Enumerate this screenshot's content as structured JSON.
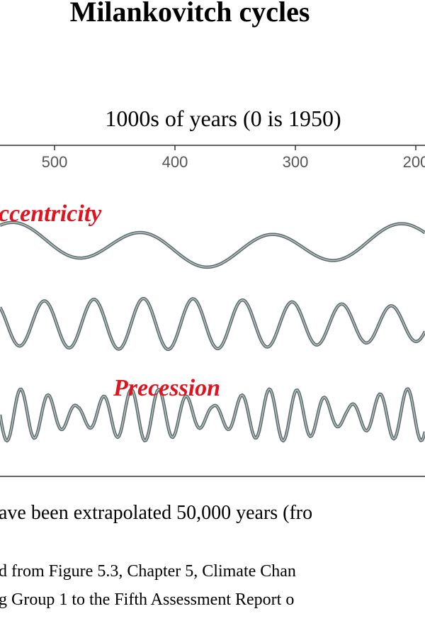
{
  "figure": {
    "title": "Milankovitch cycles",
    "axis": {
      "label": "1000s of years (0 is 1950)",
      "ticks": [
        500,
        400,
        300,
        200
      ]
    },
    "labels": {
      "eccentricity": "ccentricity",
      "precession": "Precession"
    },
    "caption": [
      "ave been extrapolated 50,000 years (fro",
      "d from Figure 5.3, Chapter 5, Climate Chan",
      "g Group 1 to the Fifth Assessment Report o"
    ]
  }
}
